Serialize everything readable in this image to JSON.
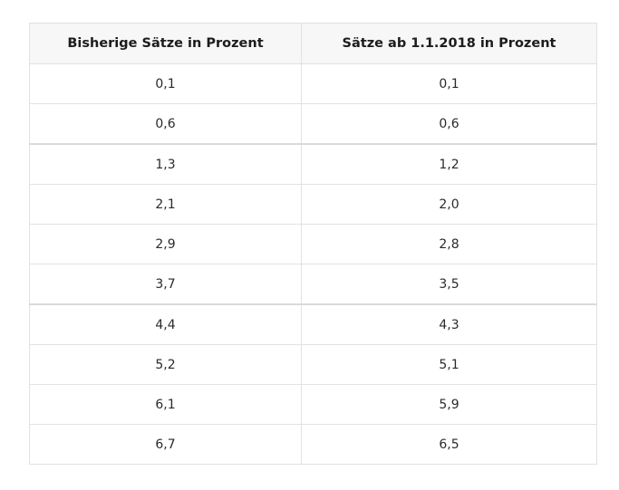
{
  "table": {
    "headers": [
      "Bisherige Sätze in Prozent",
      "Sätze ab 1.1.2018 in Prozent"
    ],
    "rows": [
      [
        "0,1",
        "0,1"
      ],
      [
        "0,6",
        "0,6"
      ],
      [
        "1,3",
        "1,2"
      ],
      [
        "2,1",
        "2,0"
      ],
      [
        "2,9",
        "2,8"
      ],
      [
        "3,7",
        "3,5"
      ],
      [
        "4,4",
        "4,3"
      ],
      [
        "5,2",
        "5,1"
      ],
      [
        "6,1",
        "5,9"
      ],
      [
        "6,7",
        "6,5"
      ]
    ]
  }
}
